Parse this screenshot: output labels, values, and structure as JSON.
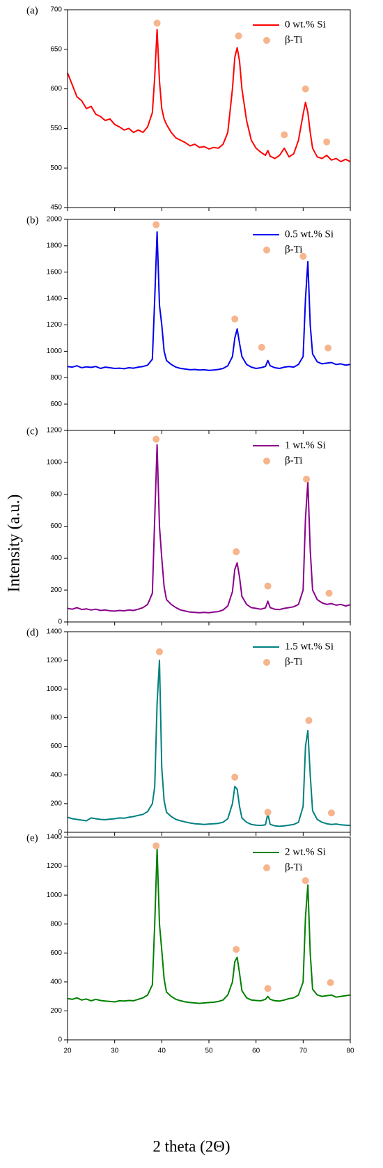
{
  "figure": {
    "y_label": "Intensity (a.u.)",
    "x_label": "2 theta (2Θ)"
  },
  "chart_data": [
    {
      "type": "line",
      "panel_label": "(a)",
      "legend": "upper right",
      "show_xtick_labels": false,
      "xlim": [
        20,
        80
      ],
      "xticks": [
        20,
        30,
        40,
        50,
        60,
        70,
        80
      ],
      "ylim": [
        450,
        700
      ],
      "yticks": [
        450,
        500,
        550,
        600,
        650,
        700
      ],
      "x": [
        20,
        21,
        22,
        23,
        24,
        25,
        26,
        27,
        28,
        29,
        30,
        31,
        32,
        33,
        34,
        35,
        36,
        37,
        38,
        38.5,
        39,
        39.5,
        40,
        40.5,
        41,
        42,
        43,
        44,
        45,
        46,
        47,
        48,
        49,
        50,
        51,
        52,
        53,
        54,
        55,
        55.5,
        56,
        56.5,
        57,
        58,
        59,
        60,
        61,
        62,
        62.5,
        63,
        64,
        65,
        66,
        67,
        68,
        69,
        70,
        70.5,
        71,
        71.5,
        72,
        73,
        74,
        75,
        76,
        77,
        78,
        79,
        80
      ],
      "series": [
        {
          "name": "0 wt.% Si",
          "color": "#ff0000",
          "values": [
            620,
            605,
            590,
            585,
            575,
            578,
            568,
            565,
            560,
            562,
            555,
            552,
            548,
            550,
            545,
            548,
            545,
            552,
            570,
            615,
            675,
            610,
            575,
            562,
            555,
            545,
            538,
            535,
            532,
            528,
            530,
            526,
            527,
            524,
            526,
            525,
            530,
            545,
            600,
            640,
            652,
            635,
            600,
            560,
            535,
            525,
            520,
            516,
            522,
            515,
            512,
            516,
            525,
            514,
            518,
            535,
            568,
            583,
            570,
            545,
            525,
            514,
            512,
            516,
            510,
            512,
            508,
            511,
            508
          ]
        },
        {
          "name": "β-Ti",
          "type": "scatter",
          "color": "#f6b58c",
          "x": [
            39,
            56.3,
            66,
            70.5,
            75
          ],
          "values": [
            683,
            667,
            542,
            600,
            533
          ]
        }
      ]
    },
    {
      "type": "line",
      "panel_label": "(b)",
      "legend": "upper right",
      "show_xtick_labels": false,
      "xlim": [
        20,
        80
      ],
      "xticks": [
        20,
        30,
        40,
        50,
        60,
        70,
        80
      ],
      "ylim": [
        400,
        2000
      ],
      "yticks": [
        600,
        800,
        1000,
        1200,
        1400,
        1600,
        1800,
        2000
      ],
      "x": [
        20,
        21,
        22,
        23,
        24,
        25,
        26,
        27,
        28,
        29,
        30,
        31,
        32,
        33,
        34,
        35,
        36,
        37,
        38,
        38.5,
        39,
        39.5,
        40,
        40.5,
        41,
        42,
        43,
        44,
        45,
        46,
        47,
        48,
        49,
        50,
        51,
        52,
        53,
        54,
        55,
        55.5,
        56,
        56.5,
        57,
        58,
        59,
        60,
        61,
        62,
        62.5,
        63,
        64,
        65,
        66,
        67,
        68,
        69,
        70,
        70.5,
        71,
        71.5,
        72,
        73,
        74,
        75,
        76,
        77,
        78,
        79,
        80
      ],
      "series": [
        {
          "name": "0.5 wt.% Si",
          "color": "#0000ee",
          "values": [
            885,
            880,
            890,
            875,
            882,
            878,
            885,
            870,
            880,
            875,
            870,
            872,
            868,
            875,
            872,
            880,
            885,
            895,
            940,
            1400,
            1905,
            1350,
            1200,
            1000,
            930,
            900,
            880,
            870,
            865,
            860,
            862,
            858,
            860,
            855,
            858,
            862,
            870,
            890,
            960,
            1100,
            1170,
            1060,
            960,
            900,
            880,
            870,
            875,
            885,
            930,
            890,
            875,
            870,
            880,
            885,
            880,
            900,
            960,
            1400,
            1680,
            1200,
            980,
            920,
            905,
            910,
            915,
            900,
            905,
            895,
            900
          ]
        },
        {
          "name": "β-Ti",
          "type": "scatter",
          "color": "#f6b58c",
          "x": [
            38.8,
            55.5,
            61.2,
            70,
            75.3
          ],
          "values": [
            1960,
            1245,
            1030,
            1720,
            1025
          ]
        }
      ]
    },
    {
      "type": "line",
      "panel_label": "(c)",
      "legend": "upper right",
      "show_xtick_labels": false,
      "xlim": [
        20,
        80
      ],
      "xticks": [
        20,
        30,
        40,
        50,
        60,
        70,
        80
      ],
      "ylim": [
        0,
        1200
      ],
      "yticks": [
        0,
        200,
        400,
        600,
        800,
        1000,
        1200
      ],
      "x": [
        20,
        21,
        22,
        23,
        24,
        25,
        26,
        27,
        28,
        29,
        30,
        31,
        32,
        33,
        34,
        35,
        36,
        37,
        38,
        38.5,
        39,
        39.5,
        40,
        40.5,
        41,
        42,
        43,
        44,
        45,
        46,
        47,
        48,
        49,
        50,
        51,
        52,
        53,
        54,
        55,
        55.5,
        56,
        56.5,
        57,
        58,
        59,
        60,
        61,
        62,
        62.5,
        63,
        64,
        65,
        66,
        67,
        68,
        69,
        70,
        70.5,
        71,
        71.5,
        72,
        73,
        74,
        75,
        76,
        77,
        78,
        79,
        80
      ],
      "series": [
        {
          "name": "1 wt.% Si",
          "color": "#8b008b",
          "values": [
            85,
            80,
            90,
            78,
            82,
            75,
            80,
            72,
            75,
            70,
            68,
            72,
            70,
            75,
            72,
            80,
            90,
            110,
            180,
            650,
            1110,
            600,
            400,
            220,
            140,
            110,
            90,
            75,
            68,
            62,
            60,
            58,
            60,
            58,
            62,
            65,
            75,
            100,
            190,
            330,
            370,
            280,
            160,
            110,
            90,
            85,
            80,
            88,
            130,
            90,
            80,
            78,
            85,
            90,
            95,
            110,
            200,
            650,
            880,
            450,
            200,
            140,
            120,
            110,
            115,
            105,
            110,
            100,
            108
          ]
        },
        {
          "name": "β-Ti",
          "type": "scatter",
          "color": "#f6b58c",
          "x": [
            38.8,
            55.8,
            62.5,
            70.7,
            75.5
          ],
          "values": [
            1145,
            440,
            225,
            895,
            180
          ]
        }
      ]
    },
    {
      "type": "line",
      "panel_label": "(d)",
      "legend": "upper right",
      "show_xtick_labels": false,
      "xlim": [
        20,
        80
      ],
      "xticks": [
        20,
        30,
        40,
        50,
        60,
        70,
        80
      ],
      "ylim": [
        0,
        1400
      ],
      "yticks": [
        0,
        200,
        400,
        600,
        800,
        1000,
        1200,
        1400
      ],
      "x": [
        20,
        21,
        22,
        23,
        24,
        25,
        26,
        27,
        28,
        29,
        30,
        31,
        32,
        33,
        34,
        35,
        36,
        37,
        38,
        38.5,
        39,
        39.5,
        40,
        40.5,
        41,
        42,
        43,
        44,
        45,
        46,
        47,
        48,
        49,
        50,
        51,
        52,
        53,
        54,
        55,
        55.5,
        56,
        56.5,
        57,
        58,
        59,
        60,
        61,
        62,
        62.5,
        63,
        64,
        65,
        66,
        67,
        68,
        69,
        70,
        70.5,
        71,
        71.5,
        72,
        73,
        74,
        75,
        76,
        77,
        78,
        79,
        80
      ],
      "series": [
        {
          "name": "1.5 wt.% Si",
          "color": "#008080",
          "values": [
            105,
            95,
            90,
            85,
            80,
            100,
            95,
            90,
            88,
            92,
            95,
            100,
            98,
            105,
            110,
            118,
            125,
            145,
            200,
            320,
            900,
            1200,
            450,
            220,
            140,
            110,
            90,
            80,
            72,
            65,
            60,
            58,
            55,
            58,
            60,
            62,
            70,
            95,
            200,
            320,
            300,
            180,
            100,
            70,
            55,
            50,
            48,
            52,
            130,
            55,
            45,
            42,
            45,
            50,
            55,
            70,
            180,
            600,
            710,
            400,
            150,
            90,
            70,
            60,
            55,
            58,
            52,
            50,
            48
          ]
        },
        {
          "name": "β-Ti",
          "type": "scatter",
          "color": "#f6b58c",
          "x": [
            39.5,
            55.5,
            62.5,
            71.2,
            76
          ],
          "values": [
            1260,
            385,
            140,
            780,
            135
          ]
        }
      ]
    },
    {
      "type": "line",
      "panel_label": "(e)",
      "legend": "upper right",
      "show_xtick_labels": true,
      "xlim": [
        20,
        80
      ],
      "xticks": [
        20,
        30,
        40,
        50,
        60,
        70,
        80
      ],
      "ylim": [
        0,
        1400
      ],
      "yticks": [
        0,
        200,
        400,
        600,
        800,
        1000,
        1200,
        1400
      ],
      "x": [
        20,
        21,
        22,
        23,
        24,
        25,
        26,
        27,
        28,
        29,
        30,
        31,
        32,
        33,
        34,
        35,
        36,
        37,
        38,
        38.5,
        39,
        39.5,
        40,
        40.5,
        41,
        42,
        43,
        44,
        45,
        46,
        47,
        48,
        49,
        50,
        51,
        52,
        53,
        54,
        55,
        55.5,
        56,
        56.5,
        57,
        58,
        59,
        60,
        61,
        62,
        62.5,
        63,
        64,
        65,
        66,
        67,
        68,
        69,
        70,
        70.5,
        71,
        71.5,
        72,
        73,
        74,
        75,
        76,
        77,
        78,
        79,
        80
      ],
      "series": [
        {
          "name": "2 wt.% Si",
          "color": "#008000",
          "values": [
            285,
            280,
            290,
            275,
            282,
            270,
            280,
            272,
            268,
            265,
            262,
            270,
            268,
            272,
            270,
            280,
            290,
            310,
            380,
            800,
            1320,
            800,
            620,
            420,
            330,
            300,
            280,
            270,
            262,
            258,
            255,
            252,
            255,
            258,
            260,
            265,
            275,
            310,
            400,
            540,
            570,
            460,
            340,
            290,
            275,
            272,
            270,
            280,
            300,
            280,
            270,
            268,
            275,
            285,
            290,
            310,
            400,
            850,
            1070,
            600,
            350,
            310,
            300,
            305,
            310,
            295,
            300,
            305,
            310
          ]
        },
        {
          "name": "β-Ti",
          "type": "scatter",
          "color": "#f6b58c",
          "x": [
            38.8,
            55.8,
            62.5,
            70.5,
            75.8
          ],
          "values": [
            1340,
            625,
            355,
            1100,
            395
          ]
        }
      ]
    }
  ]
}
